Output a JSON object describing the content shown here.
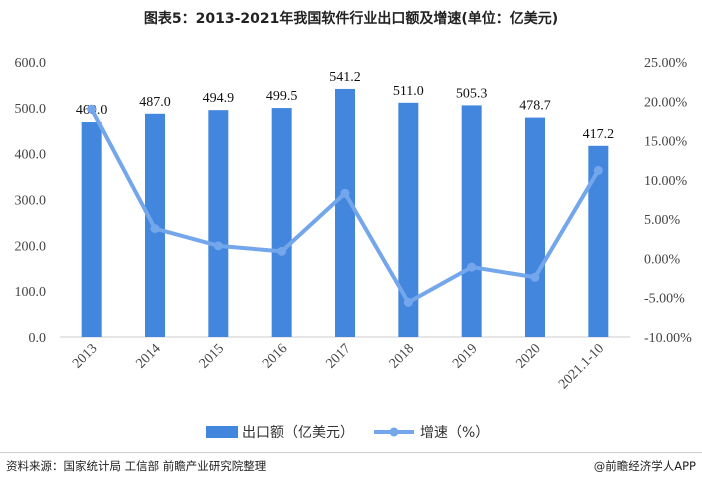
{
  "chart_data": {
    "type": "bar+line",
    "title": "图表5：2013-2021年我国软件行业出口额及增速(单位：亿美元)",
    "categories": [
      "2013",
      "2014",
      "2015",
      "2016",
      "2017",
      "2018",
      "2019",
      "2020",
      "2021.1-10"
    ],
    "series": [
      {
        "name": "出口额（亿美元）",
        "type": "bar",
        "axis": "left",
        "color": "#4286DD",
        "values": [
          469.0,
          487.0,
          494.9,
          499.5,
          541.2,
          511.0,
          505.3,
          478.7,
          417.2
        ],
        "labels": [
          "469.0",
          "487.0",
          "494.9",
          "499.5",
          "541.2",
          "511.0",
          "505.3",
          "478.7",
          "417.2"
        ]
      },
      {
        "name": "增速（%）",
        "type": "line",
        "axis": "right",
        "color": "#74A6EC",
        "values": [
          19.0,
          3.8,
          1.6,
          0.9,
          8.3,
          -5.6,
          -1.1,
          -2.4,
          11.2
        ]
      }
    ],
    "left_axis": {
      "range": [
        0,
        600
      ],
      "ticks": [
        "0.0",
        "100.0",
        "200.0",
        "300.0",
        "400.0",
        "500.0",
        "600.0"
      ]
    },
    "right_axis": {
      "range": [
        -10,
        25
      ],
      "ticks": [
        "-10.00%",
        "-5.00%",
        "0.00%",
        "5.00%",
        "10.00%",
        "15.00%",
        "20.00%",
        "25.00%"
      ]
    },
    "grid": false,
    "legend": "bottom"
  },
  "footer": {
    "source": "资料来源：国家统计局 工信部 前瞻产业研究院整理",
    "brand": "@前瞻经济学人APP"
  }
}
